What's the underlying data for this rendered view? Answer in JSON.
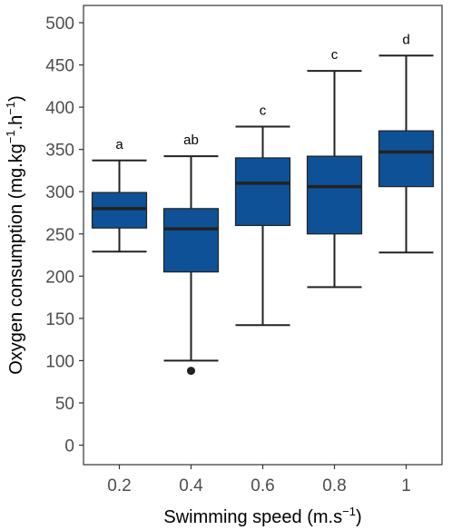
{
  "chart_data": {
    "type": "boxplot",
    "xlabel": "Swimming speed (m.s",
    "xlabel_sup": "−1",
    "xlabel_end": ")",
    "ylabel_parts": [
      "Oxygen consumption (mg.kg",
      "−1",
      ".h",
      "−1",
      ")"
    ],
    "ylim": [
      0,
      520
    ],
    "yticks": [
      0,
      50,
      100,
      150,
      200,
      250,
      300,
      350,
      400,
      450,
      500
    ],
    "categories": [
      "0.2",
      "0.4",
      "0.6",
      "0.8",
      "1"
    ],
    "boxes": [
      {
        "x": "0.2",
        "min": 229,
        "q1": 257,
        "median": 280,
        "q3": 299,
        "max": 337,
        "outliers": [],
        "label": "a"
      },
      {
        "x": "0.4",
        "min": 100,
        "q1": 205,
        "median": 256,
        "q3": 280,
        "max": 342,
        "outliers": [
          88
        ],
        "label": "ab"
      },
      {
        "x": "0.6",
        "min": 142,
        "q1": 260,
        "median": 310,
        "q3": 340,
        "max": 377,
        "outliers": [],
        "label": "c"
      },
      {
        "x": "0.8",
        "min": 187,
        "q1": 250,
        "median": 306,
        "q3": 342,
        "max": 443,
        "outliers": [],
        "label": "c"
      },
      {
        "x": "1",
        "min": 228,
        "q1": 306,
        "median": 347,
        "q3": 372,
        "max": 461,
        "outliers": [],
        "label": "d"
      }
    ],
    "box_color": "#0f5196",
    "line_color": "#222222",
    "grid": false
  }
}
